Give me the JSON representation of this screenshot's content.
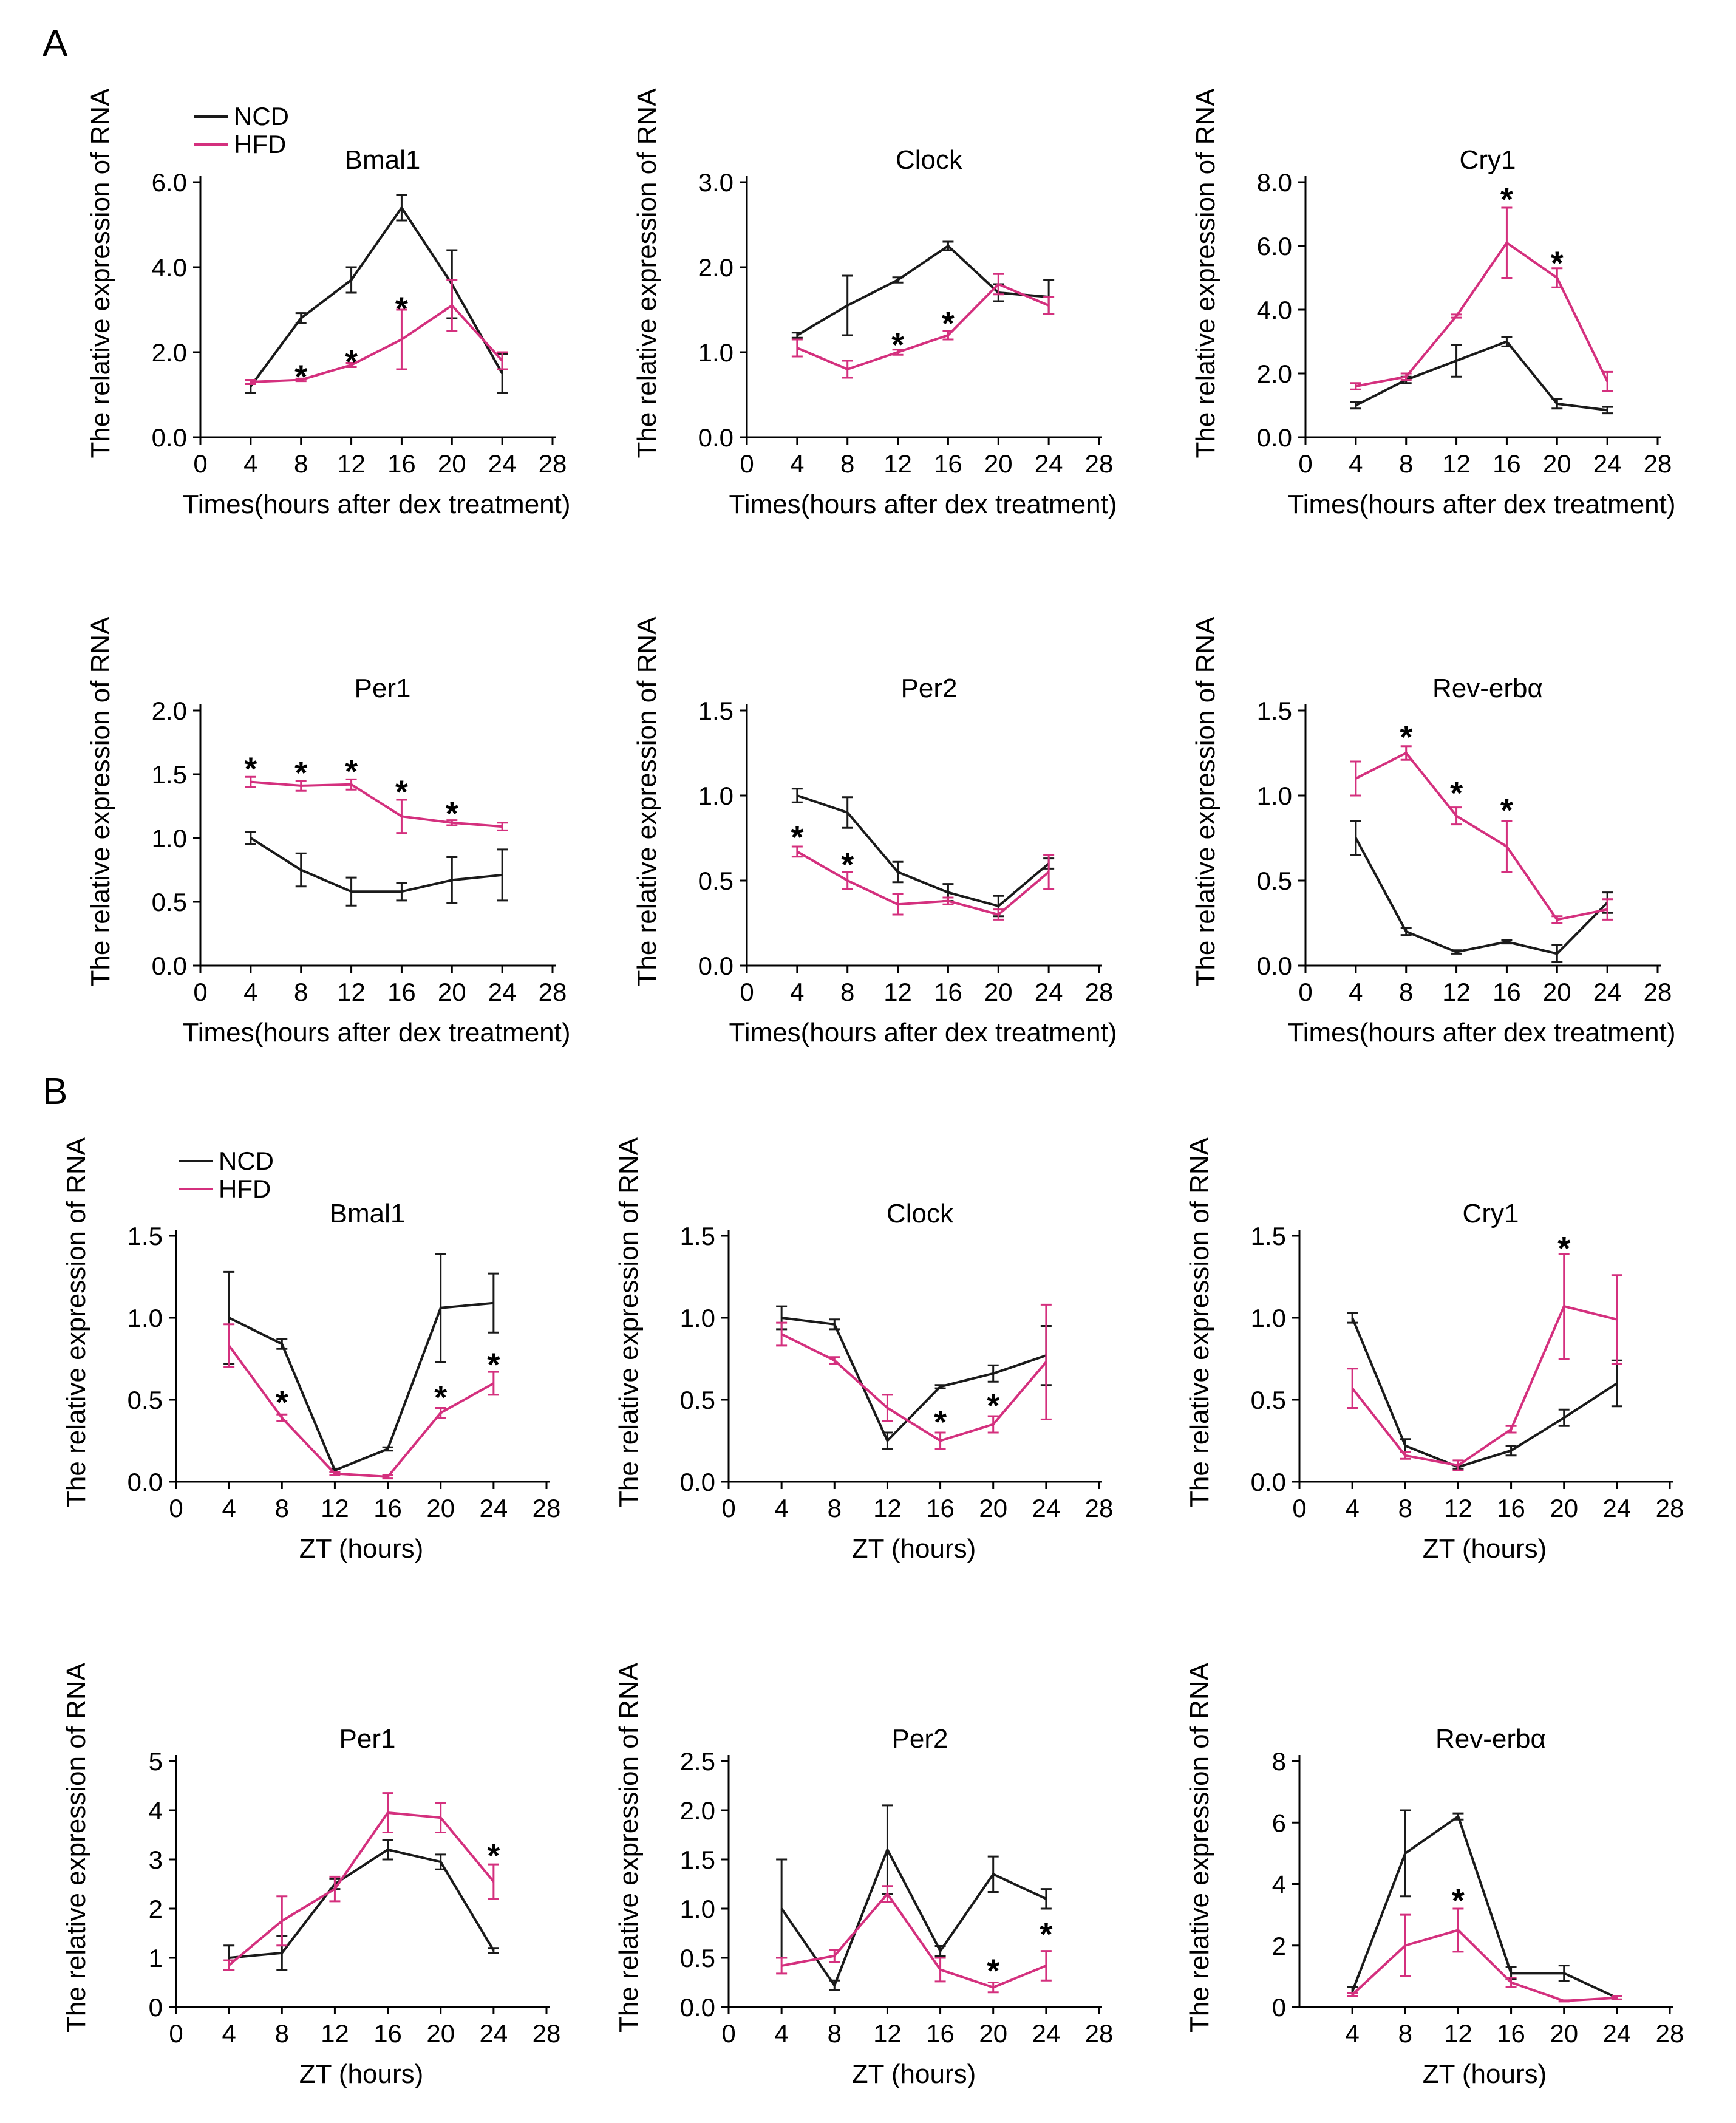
{
  "figure": {
    "panel_labels": [
      "A",
      "B"
    ],
    "legend": [
      {
        "name": "NCD",
        "color": "#1a1a1a"
      },
      {
        "name": "HFD",
        "color": "#d4307e"
      }
    ]
  },
  "chart_data": [
    {
      "type": "line",
      "panel": "A",
      "title": "Bmal1",
      "xlabel": "Times(hours after dex treatment)",
      "ylabel": "The relative expression of RNA",
      "xlim": [
        0,
        28
      ],
      "xticks": [
        "0",
        "4",
        "8",
        "12",
        "16",
        "20",
        "24",
        "28"
      ],
      "ylim": [
        0,
        6
      ],
      "yticks": [
        "0.0",
        "2.0",
        "4.0",
        "6.0"
      ],
      "x": [
        4,
        8,
        12,
        16,
        20,
        24
      ],
      "series": [
        {
          "name": "NCD",
          "values": [
            1.2,
            2.8,
            3.7,
            5.4,
            3.6,
            1.5
          ],
          "err": [
            0.15,
            0.12,
            0.3,
            0.3,
            0.8,
            0.45
          ]
        },
        {
          "name": "HFD",
          "values": [
            1.3,
            1.35,
            1.7,
            2.3,
            3.1,
            1.8
          ],
          "err": [
            0.05,
            0.03,
            0.05,
            0.7,
            0.6,
            0.2
          ]
        }
      ],
      "stars": [
        {
          "x": 8,
          "y": 1.45
        },
        {
          "x": 12,
          "y": 1.8
        },
        {
          "x": 16,
          "y": 3.05
        }
      ]
    },
    {
      "type": "line",
      "panel": "A",
      "title": "Clock",
      "xlabel": "Times(hours after dex treatment)",
      "ylabel": "The relative expression of RNA",
      "xlim": [
        0,
        28
      ],
      "xticks": [
        "0",
        "4",
        "8",
        "12",
        "16",
        "20",
        "24",
        "28"
      ],
      "ylim": [
        0,
        3
      ],
      "yticks": [
        "0.0",
        "1.0",
        "2.0",
        "3.0"
      ],
      "x": [
        4,
        8,
        12,
        16,
        20,
        24
      ],
      "series": [
        {
          "name": "NCD",
          "values": [
            1.2,
            1.55,
            1.85,
            2.25,
            1.7,
            1.65
          ],
          "err": [
            0.03,
            0.35,
            0.03,
            0.05,
            0.1,
            0.2
          ]
        },
        {
          "name": "HFD",
          "values": [
            1.05,
            0.8,
            1.0,
            1.2,
            1.8,
            1.55
          ],
          "err": [
            0.1,
            0.1,
            0.03,
            0.05,
            0.12,
            0.1
          ]
        }
      ],
      "stars": [
        {
          "x": 12,
          "y": 1.1
        },
        {
          "x": 16,
          "y": 1.35
        }
      ]
    },
    {
      "type": "line",
      "panel": "A",
      "title": "Cry1",
      "xlabel": "Times(hours after dex treatment)",
      "ylabel": "The relative expression of RNA",
      "xlim": [
        0,
        28
      ],
      "xticks": [
        "0",
        "4",
        "8",
        "12",
        "16",
        "20",
        "24",
        "28"
      ],
      "ylim": [
        0,
        8
      ],
      "yticks": [
        "0.0",
        "2.0",
        "4.0",
        "6.0",
        "8.0"
      ],
      "x": [
        4,
        8,
        12,
        16,
        20,
        24
      ],
      "series": [
        {
          "name": "NCD",
          "values": [
            1.0,
            1.8,
            2.4,
            3.0,
            1.05,
            0.85
          ],
          "err": [
            0.1,
            0.1,
            0.5,
            0.15,
            0.15,
            0.1
          ]
        },
        {
          "name": "HFD",
          "values": [
            1.6,
            1.9,
            3.8,
            6.1,
            5.0,
            1.75
          ],
          "err": [
            0.1,
            0.1,
            0.05,
            1.1,
            0.3,
            0.3
          ]
        }
      ],
      "stars": [
        {
          "x": 16,
          "y": 7.5
        },
        {
          "x": 20,
          "y": 5.5
        }
      ]
    },
    {
      "type": "line",
      "panel": "A",
      "title": "Per1",
      "xlabel": "Times(hours after dex treatment)",
      "ylabel": "The relative expression of RNA",
      "xlim": [
        0,
        28
      ],
      "xticks": [
        "0",
        "4",
        "8",
        "12",
        "16",
        "20",
        "24",
        "28"
      ],
      "ylim": [
        0,
        2
      ],
      "yticks": [
        "0.0",
        "0.5",
        "1.0",
        "1.5",
        "2.0"
      ],
      "x": [
        4,
        8,
        12,
        16,
        20,
        24
      ],
      "series": [
        {
          "name": "NCD",
          "values": [
            1.0,
            0.75,
            0.58,
            0.58,
            0.67,
            0.71
          ],
          "err": [
            0.05,
            0.13,
            0.11,
            0.07,
            0.18,
            0.2
          ]
        },
        {
          "name": "HFD",
          "values": [
            1.44,
            1.41,
            1.42,
            1.17,
            1.12,
            1.09
          ],
          "err": [
            0.04,
            0.04,
            0.04,
            0.13,
            0.02,
            0.03
          ]
        }
      ],
      "stars": [
        {
          "x": 4,
          "y": 1.55
        },
        {
          "x": 8,
          "y": 1.52
        },
        {
          "x": 12,
          "y": 1.53
        },
        {
          "x": 16,
          "y": 1.37
        },
        {
          "x": 20,
          "y": 1.2
        }
      ]
    },
    {
      "type": "line",
      "panel": "A",
      "title": "Per2",
      "xlabel": "Times(hours after dex treatment)",
      "ylabel": "The relative expression of RNA",
      "xlim": [
        0,
        28
      ],
      "xticks": [
        "0",
        "4",
        "8",
        "12",
        "16",
        "20",
        "24",
        "28"
      ],
      "ylim": [
        0,
        1.5
      ],
      "yticks": [
        "0.0",
        "0.5",
        "1.0",
        "1.5"
      ],
      "x": [
        4,
        8,
        12,
        16,
        20,
        24
      ],
      "series": [
        {
          "name": "NCD",
          "values": [
            1.0,
            0.9,
            0.55,
            0.43,
            0.35,
            0.6
          ],
          "err": [
            0.04,
            0.09,
            0.06,
            0.05,
            0.06,
            0.03
          ]
        },
        {
          "name": "HFD",
          "values": [
            0.67,
            0.5,
            0.36,
            0.38,
            0.3,
            0.55
          ],
          "err": [
            0.03,
            0.05,
            0.06,
            0.02,
            0.03,
            0.1
          ]
        }
      ],
      "stars": [
        {
          "x": 4,
          "y": 0.76
        },
        {
          "x": 8,
          "y": 0.6
        }
      ]
    },
    {
      "type": "line",
      "panel": "A",
      "title": "Rev-erbα",
      "xlabel": "Times(hours after dex treatment)",
      "ylabel": "The relative expression of RNA",
      "xlim": [
        0,
        28
      ],
      "xticks": [
        "0",
        "4",
        "8",
        "12",
        "16",
        "20",
        "24",
        "28"
      ],
      "ylim": [
        0,
        1.5
      ],
      "yticks": [
        "0.0",
        "0.5",
        "1.0",
        "1.5"
      ],
      "x": [
        4,
        8,
        12,
        16,
        20,
        24
      ],
      "series": [
        {
          "name": "NCD",
          "values": [
            0.75,
            0.2,
            0.08,
            0.14,
            0.07,
            0.37
          ],
          "err": [
            0.1,
            0.02,
            0.01,
            0.01,
            0.05,
            0.06
          ]
        },
        {
          "name": "HFD",
          "values": [
            1.1,
            1.25,
            0.88,
            0.7,
            0.27,
            0.33
          ],
          "err": [
            0.1,
            0.04,
            0.05,
            0.15,
            0.02,
            0.06
          ]
        }
      ],
      "stars": [
        {
          "x": 8,
          "y": 1.35
        },
        {
          "x": 12,
          "y": 1.02
        },
        {
          "x": 16,
          "y": 0.92
        }
      ]
    },
    {
      "type": "line",
      "panel": "B",
      "title": "Bmal1",
      "xlabel": "ZT (hours)",
      "ylabel": "The relative expression of RNA",
      "xlim": [
        0,
        28
      ],
      "xticks": [
        "0",
        "4",
        "8",
        "12",
        "16",
        "20",
        "24",
        "28"
      ],
      "ylim": [
        0,
        1.5
      ],
      "yticks": [
        "0.0",
        "0.5",
        "1.0",
        "1.5"
      ],
      "x": [
        4,
        8,
        12,
        16,
        20,
        24
      ],
      "series": [
        {
          "name": "NCD",
          "values": [
            1.0,
            0.84,
            0.07,
            0.2,
            1.06,
            1.09
          ],
          "err": [
            0.28,
            0.03,
            0.01,
            0.01,
            0.33,
            0.18
          ]
        },
        {
          "name": "HFD",
          "values": [
            0.83,
            0.39,
            0.05,
            0.03,
            0.42,
            0.6
          ],
          "err": [
            0.13,
            0.02,
            0.01,
            0.01,
            0.03,
            0.07
          ]
        }
      ],
      "stars": [
        {
          "x": 8,
          "y": 0.49
        },
        {
          "x": 20,
          "y": 0.52
        },
        {
          "x": 24,
          "y": 0.72
        }
      ]
    },
    {
      "type": "line",
      "panel": "B",
      "title": "Clock",
      "xlabel": "ZT (hours)",
      "ylabel": "The relative expression of RNA",
      "xlim": [
        0,
        28
      ],
      "xticks": [
        "0",
        "4",
        "8",
        "12",
        "16",
        "20",
        "24",
        "28"
      ],
      "ylim": [
        0,
        1.5
      ],
      "yticks": [
        "0.0",
        "0.5",
        "1.0",
        "1.5"
      ],
      "x": [
        4,
        8,
        12,
        16,
        20,
        24
      ],
      "series": [
        {
          "name": "NCD",
          "values": [
            1.0,
            0.96,
            0.25,
            0.58,
            0.66,
            0.77
          ],
          "err": [
            0.07,
            0.03,
            0.05,
            0.01,
            0.05,
            0.18
          ]
        },
        {
          "name": "HFD",
          "values": [
            0.9,
            0.74,
            0.45,
            0.25,
            0.35,
            0.73
          ],
          "err": [
            0.07,
            0.02,
            0.08,
            0.05,
            0.05,
            0.35
          ]
        }
      ],
      "stars": [
        {
          "x": 16,
          "y": 0.37
        },
        {
          "x": 20,
          "y": 0.47
        }
      ]
    },
    {
      "type": "line",
      "panel": "B",
      "title": "Cry1",
      "xlabel": "ZT (hours)",
      "ylabel": "The relative expression of RNA",
      "xlim": [
        0,
        28
      ],
      "xticks": [
        "0",
        "4",
        "8",
        "12",
        "16",
        "20",
        "24",
        "28"
      ],
      "ylim": [
        0,
        1.5
      ],
      "yticks": [
        "0.0",
        "0.5",
        "1.0",
        "1.5"
      ],
      "x": [
        4,
        8,
        12,
        16,
        20,
        24
      ],
      "series": [
        {
          "name": "NCD",
          "values": [
            1.0,
            0.22,
            0.09,
            0.19,
            0.39,
            0.6
          ],
          "err": [
            0.03,
            0.04,
            0.01,
            0.03,
            0.05,
            0.14
          ]
        },
        {
          "name": "HFD",
          "values": [
            0.57,
            0.16,
            0.1,
            0.32,
            1.07,
            0.99
          ],
          "err": [
            0.12,
            0.02,
            0.03,
            0.02,
            0.32,
            0.27
          ]
        }
      ],
      "stars": [
        {
          "x": 20,
          "y": 1.43
        }
      ]
    },
    {
      "type": "line",
      "panel": "B",
      "title": "Per1",
      "xlabel": "ZT (hours)",
      "ylabel": "The relative expression of RNA",
      "xlim": [
        0,
        28
      ],
      "xticks": [
        "0",
        "4",
        "8",
        "12",
        "16",
        "20",
        "24",
        "28"
      ],
      "ylim": [
        0,
        5
      ],
      "yticks": [
        "0",
        "1",
        "2",
        "3",
        "4",
        "5"
      ],
      "x": [
        4,
        8,
        12,
        16,
        20,
        24
      ],
      "series": [
        {
          "name": "NCD",
          "values": [
            1.0,
            1.1,
            2.5,
            3.2,
            2.95,
            1.15
          ],
          "err": [
            0.25,
            0.35,
            0.1,
            0.2,
            0.15,
            0.05
          ]
        },
        {
          "name": "HFD",
          "values": [
            0.85,
            1.75,
            2.4,
            3.95,
            3.85,
            2.55
          ],
          "err": [
            0.1,
            0.5,
            0.25,
            0.4,
            0.3,
            0.35
          ]
        }
      ],
      "stars": [
        {
          "x": 24,
          "y": 3.1
        }
      ]
    },
    {
      "type": "line",
      "panel": "B",
      "title": "Per2",
      "xlabel": "ZT (hours)",
      "ylabel": "The relative expression of RNA",
      "xlim": [
        0,
        28
      ],
      "xticks": [
        "0",
        "4",
        "8",
        "12",
        "16",
        "20",
        "24",
        "28"
      ],
      "ylim": [
        0,
        2.5
      ],
      "yticks": [
        "0.0",
        "0.5",
        "1.0",
        "1.5",
        "2.0",
        "2.5"
      ],
      "x": [
        4,
        8,
        12,
        16,
        20,
        24
      ],
      "series": [
        {
          "name": "NCD",
          "values": [
            1.0,
            0.22,
            1.6,
            0.57,
            1.35,
            1.1
          ],
          "err": [
            0.5,
            0.05,
            0.45,
            0.05,
            0.18,
            0.1
          ]
        },
        {
          "name": "HFD",
          "values": [
            0.42,
            0.52,
            1.15,
            0.38,
            0.2,
            0.42
          ],
          "err": [
            0.08,
            0.06,
            0.08,
            0.12,
            0.05,
            0.15
          ]
        }
      ],
      "stars": [
        {
          "x": 20,
          "y": 0.38
        },
        {
          "x": 24,
          "y": 0.75
        }
      ]
    },
    {
      "type": "line",
      "panel": "B",
      "title": "Rev-erbα",
      "xlabel": "ZT (hours)",
      "ylabel": "The relative expression of RNA",
      "xlim": [
        0,
        28
      ],
      "xticks": [
        "4",
        "8",
        "12",
        "16",
        "20",
        "24",
        "28"
      ],
      "ylim": [
        0,
        8
      ],
      "yticks": [
        "0",
        "2",
        "4",
        "6",
        "8"
      ],
      "x": [
        4,
        8,
        12,
        16,
        20,
        24
      ],
      "series": [
        {
          "name": "NCD",
          "values": [
            0.5,
            5.0,
            6.2,
            1.1,
            1.1,
            0.3
          ],
          "err": [
            0.15,
            1.4,
            0.1,
            0.2,
            0.25,
            0.05
          ]
        },
        {
          "name": "HFD",
          "values": [
            0.4,
            2.0,
            2.5,
            0.8,
            0.2,
            0.3
          ],
          "err": [
            0.05,
            1.0,
            0.7,
            0.15,
            0.02,
            0.05
          ]
        }
      ],
      "stars": [
        {
          "x": 12,
          "y": 3.5
        }
      ]
    }
  ]
}
